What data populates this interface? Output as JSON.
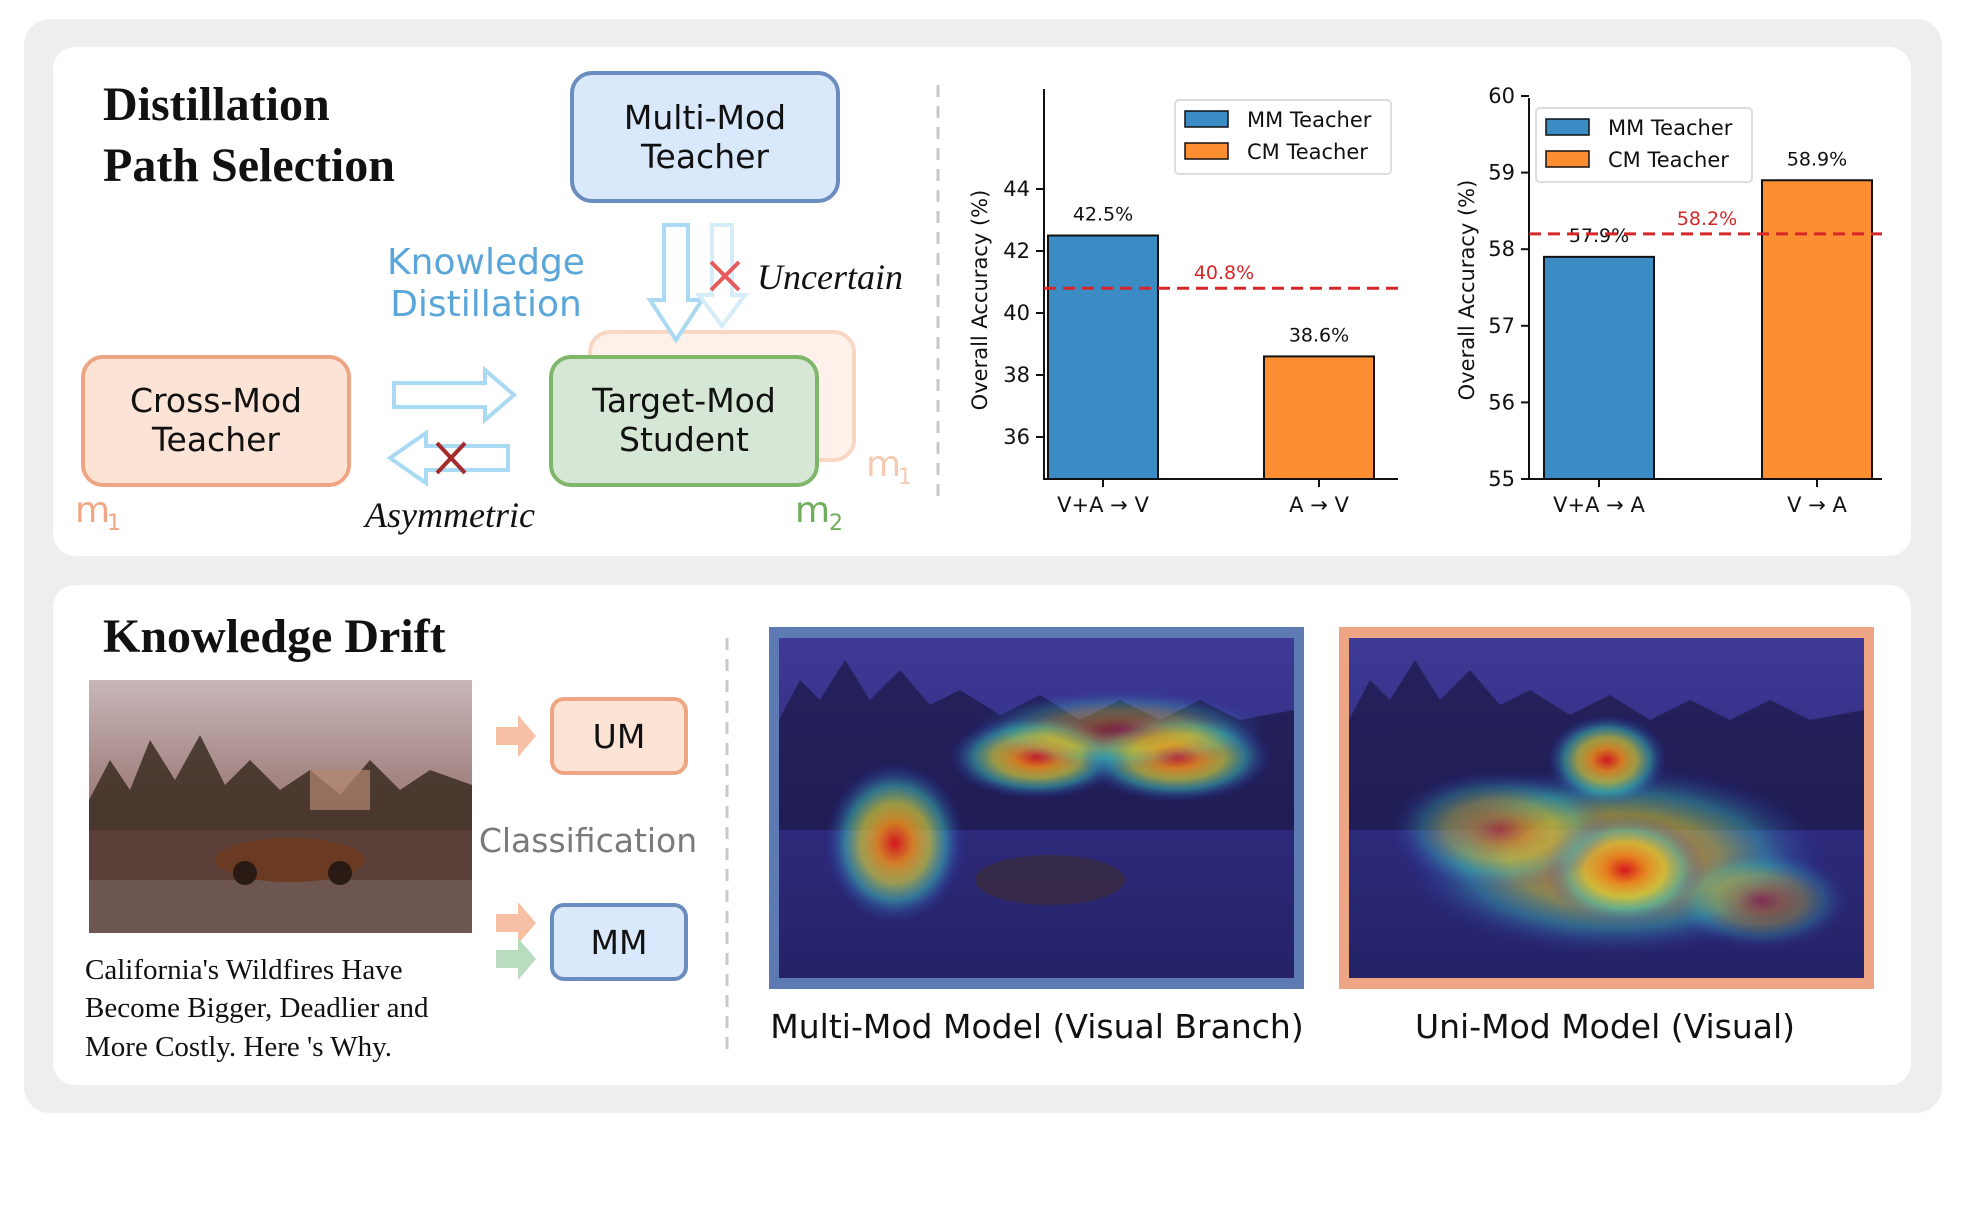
{
  "top": {
    "title_line1": "Distillation",
    "title_line2": "Path  Selection",
    "multi_mod_teacher": [
      "Multi-Mod",
      "Teacher"
    ],
    "cross_mod_teacher": [
      "Cross-Mod",
      "Teacher"
    ],
    "target_mod_student": [
      "Target-Mod",
      "Student"
    ],
    "knowledge_distillation": [
      "Knowledge",
      "Distillation"
    ],
    "uncertain": "Uncertain",
    "asymmetric": "Asymmetric",
    "m1_left": "m",
    "m1_left_sub": "1",
    "m1_right": "m",
    "m1_right_sub": "1",
    "m2": "m",
    "m2_sub": "2"
  },
  "colors": {
    "mm_blue": "#3b8bc4",
    "cm_orange": "#fd8f32",
    "ref_red": "#d62728",
    "teacher_box_fill": "#dae8fb",
    "teacher_box_stroke": "#6a8dbf",
    "cross_box_fill": "#fbe3d6",
    "cross_box_stroke": "#eea583",
    "student_box_fill": "#d6e8d5",
    "student_box_stroke": "#7fb66a",
    "kd_arrow": "#bde3f6"
  },
  "chart_data": [
    {
      "type": "bar",
      "categories": [
        "V+A → V",
        "A → V"
      ],
      "series": [
        {
          "name": "MM Teacher",
          "values": [
            42.5,
            null
          ]
        },
        {
          "name": "CM Teacher",
          "values": [
            null,
            38.6
          ]
        }
      ],
      "data_labels": [
        "42.5%",
        "38.6%"
      ],
      "reference_line": {
        "value": 40.8,
        "label": "40.8%"
      },
      "ylabel": "Overall Accuracy (%)",
      "ylim": [
        35,
        45
      ],
      "yticks": [
        "36",
        "38",
        "40",
        "42",
        "44"
      ],
      "legend": [
        "MM Teacher",
        "CM Teacher"
      ],
      "legend_position": "top-right",
      "grid": false
    },
    {
      "type": "bar",
      "categories": [
        "V+A → A",
        "V → A"
      ],
      "series": [
        {
          "name": "MM Teacher",
          "values": [
            57.9,
            null
          ]
        },
        {
          "name": "CM Teacher",
          "values": [
            null,
            58.9
          ]
        }
      ],
      "data_labels": [
        "57.9%",
        "58.9%"
      ],
      "reference_line": {
        "value": 58.2,
        "label": "58.2%"
      },
      "ylabel": "Overall Accuracy (%)",
      "ylim": [
        55,
        60
      ],
      "yticks": [
        "55",
        "56",
        "57",
        "58",
        "59",
        "60"
      ],
      "legend": [
        "MM Teacher",
        "CM Teacher"
      ],
      "legend_position": "top-left",
      "grid": false
    }
  ],
  "bottom": {
    "title": "Knowledge Drift",
    "caption_lines": [
      "California's  Wildfires  Have",
      "Become Bigger, Deadlier and",
      "More Costly. Here 's Why."
    ],
    "um": "UM",
    "mm": "MM",
    "classification": "Classification",
    "label_left": "Multi-Mod Model (Visual Branch)",
    "label_right": "Uni-Mod Model (Visual)"
  }
}
